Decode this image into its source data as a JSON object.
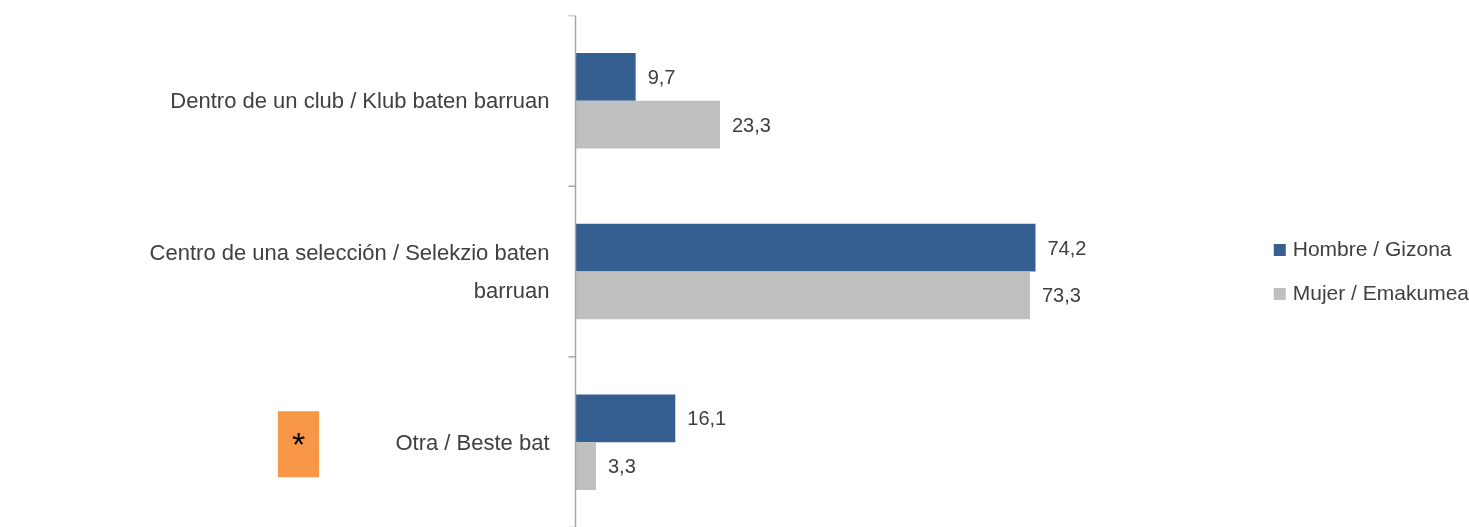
{
  "chart_data": {
    "type": "bar",
    "orientation": "horizontal",
    "categories": [
      "Dentro de un club / Klub baten barruan",
      "Centro de una selección / Selekzio baten barruan",
      "Otra / Beste bat"
    ],
    "series": [
      {
        "name": "Hombre / Gizona",
        "color": "#365f91",
        "values": [
          9.7,
          74.2,
          16.1
        ],
        "value_labels": [
          "9,7",
          "74,2",
          "16,1"
        ]
      },
      {
        "name": "Mujer / Emakumea",
        "color": "#bfbfbf",
        "values": [
          23.3,
          73.3,
          3.3
        ],
        "value_labels": [
          "23,3",
          "73,3",
          "3,3"
        ]
      }
    ],
    "legend": "right",
    "tick_labels": "y",
    "annotations": [
      "*"
    ]
  }
}
